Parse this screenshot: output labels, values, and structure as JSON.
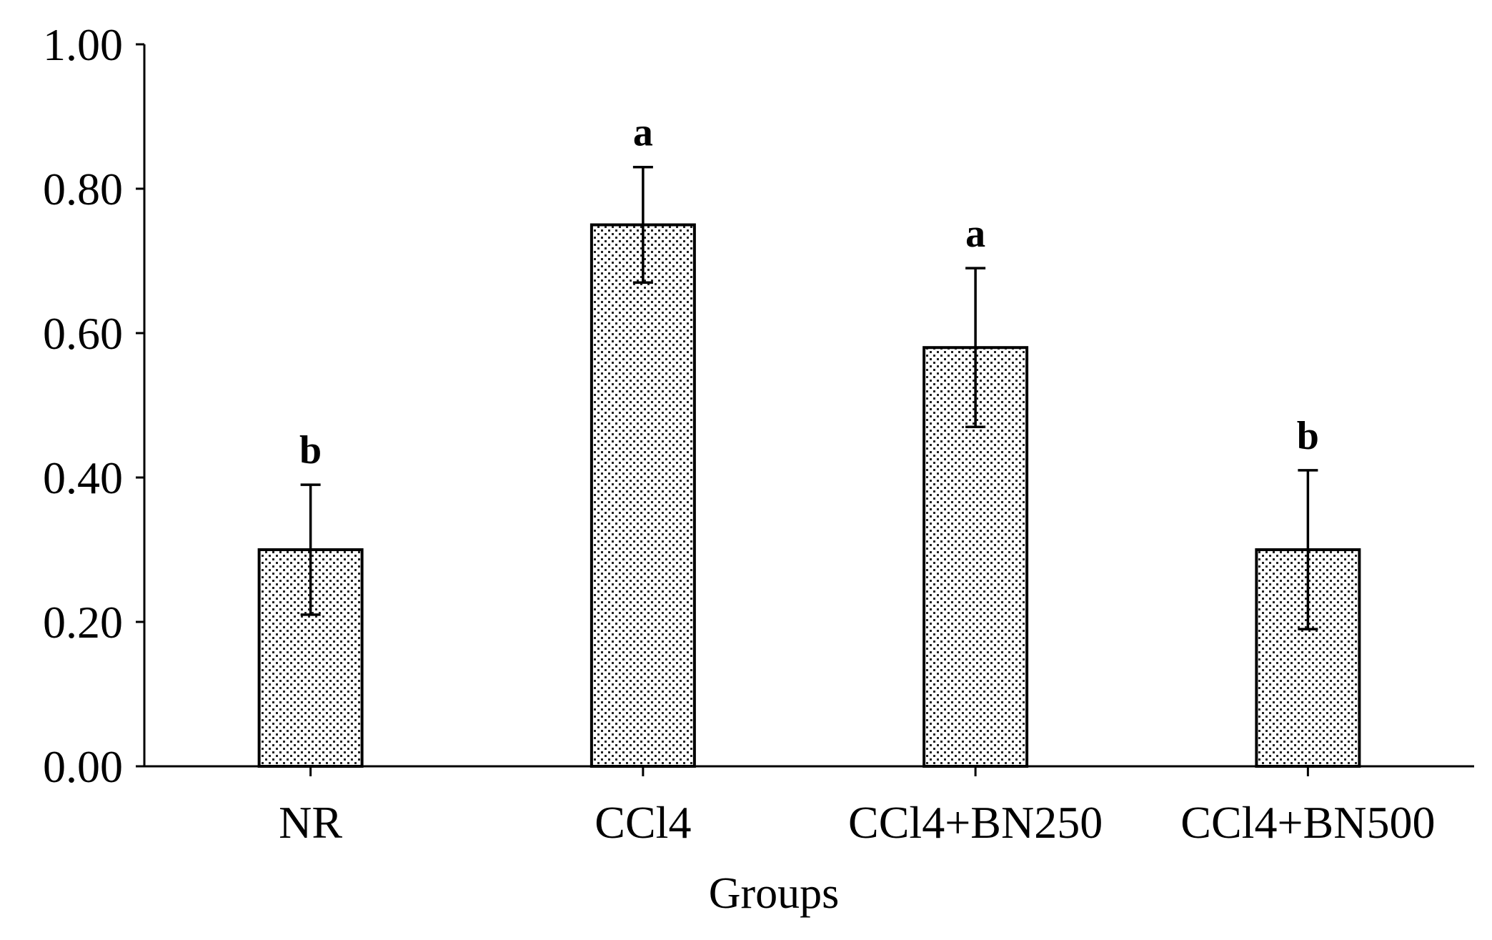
{
  "chart_data": {
    "type": "bar",
    "title": "",
    "xlabel": "Groups",
    "ylabel": "",
    "categories": [
      "NR",
      "CCl4",
      "CCl4+BN250",
      "CCl4+BN500"
    ],
    "values": [
      0.3,
      0.75,
      0.58,
      0.3
    ],
    "error_high": [
      0.39,
      0.83,
      0.69,
      0.41
    ],
    "error_low": [
      0.21,
      0.67,
      0.47,
      0.19
    ],
    "significance_letters": [
      "b",
      "a",
      "a",
      "b"
    ],
    "ylim": [
      0,
      1.0
    ],
    "yticks": [
      "0.00",
      "0.20",
      "0.40",
      "0.60",
      "0.80",
      "1.00"
    ],
    "grid": false,
    "legend": "none",
    "bar_fill": "dotted-pattern",
    "colors": {
      "bar_outline": "#000000",
      "bar_dots": "#222222",
      "bar_background": "#ffffff"
    }
  }
}
